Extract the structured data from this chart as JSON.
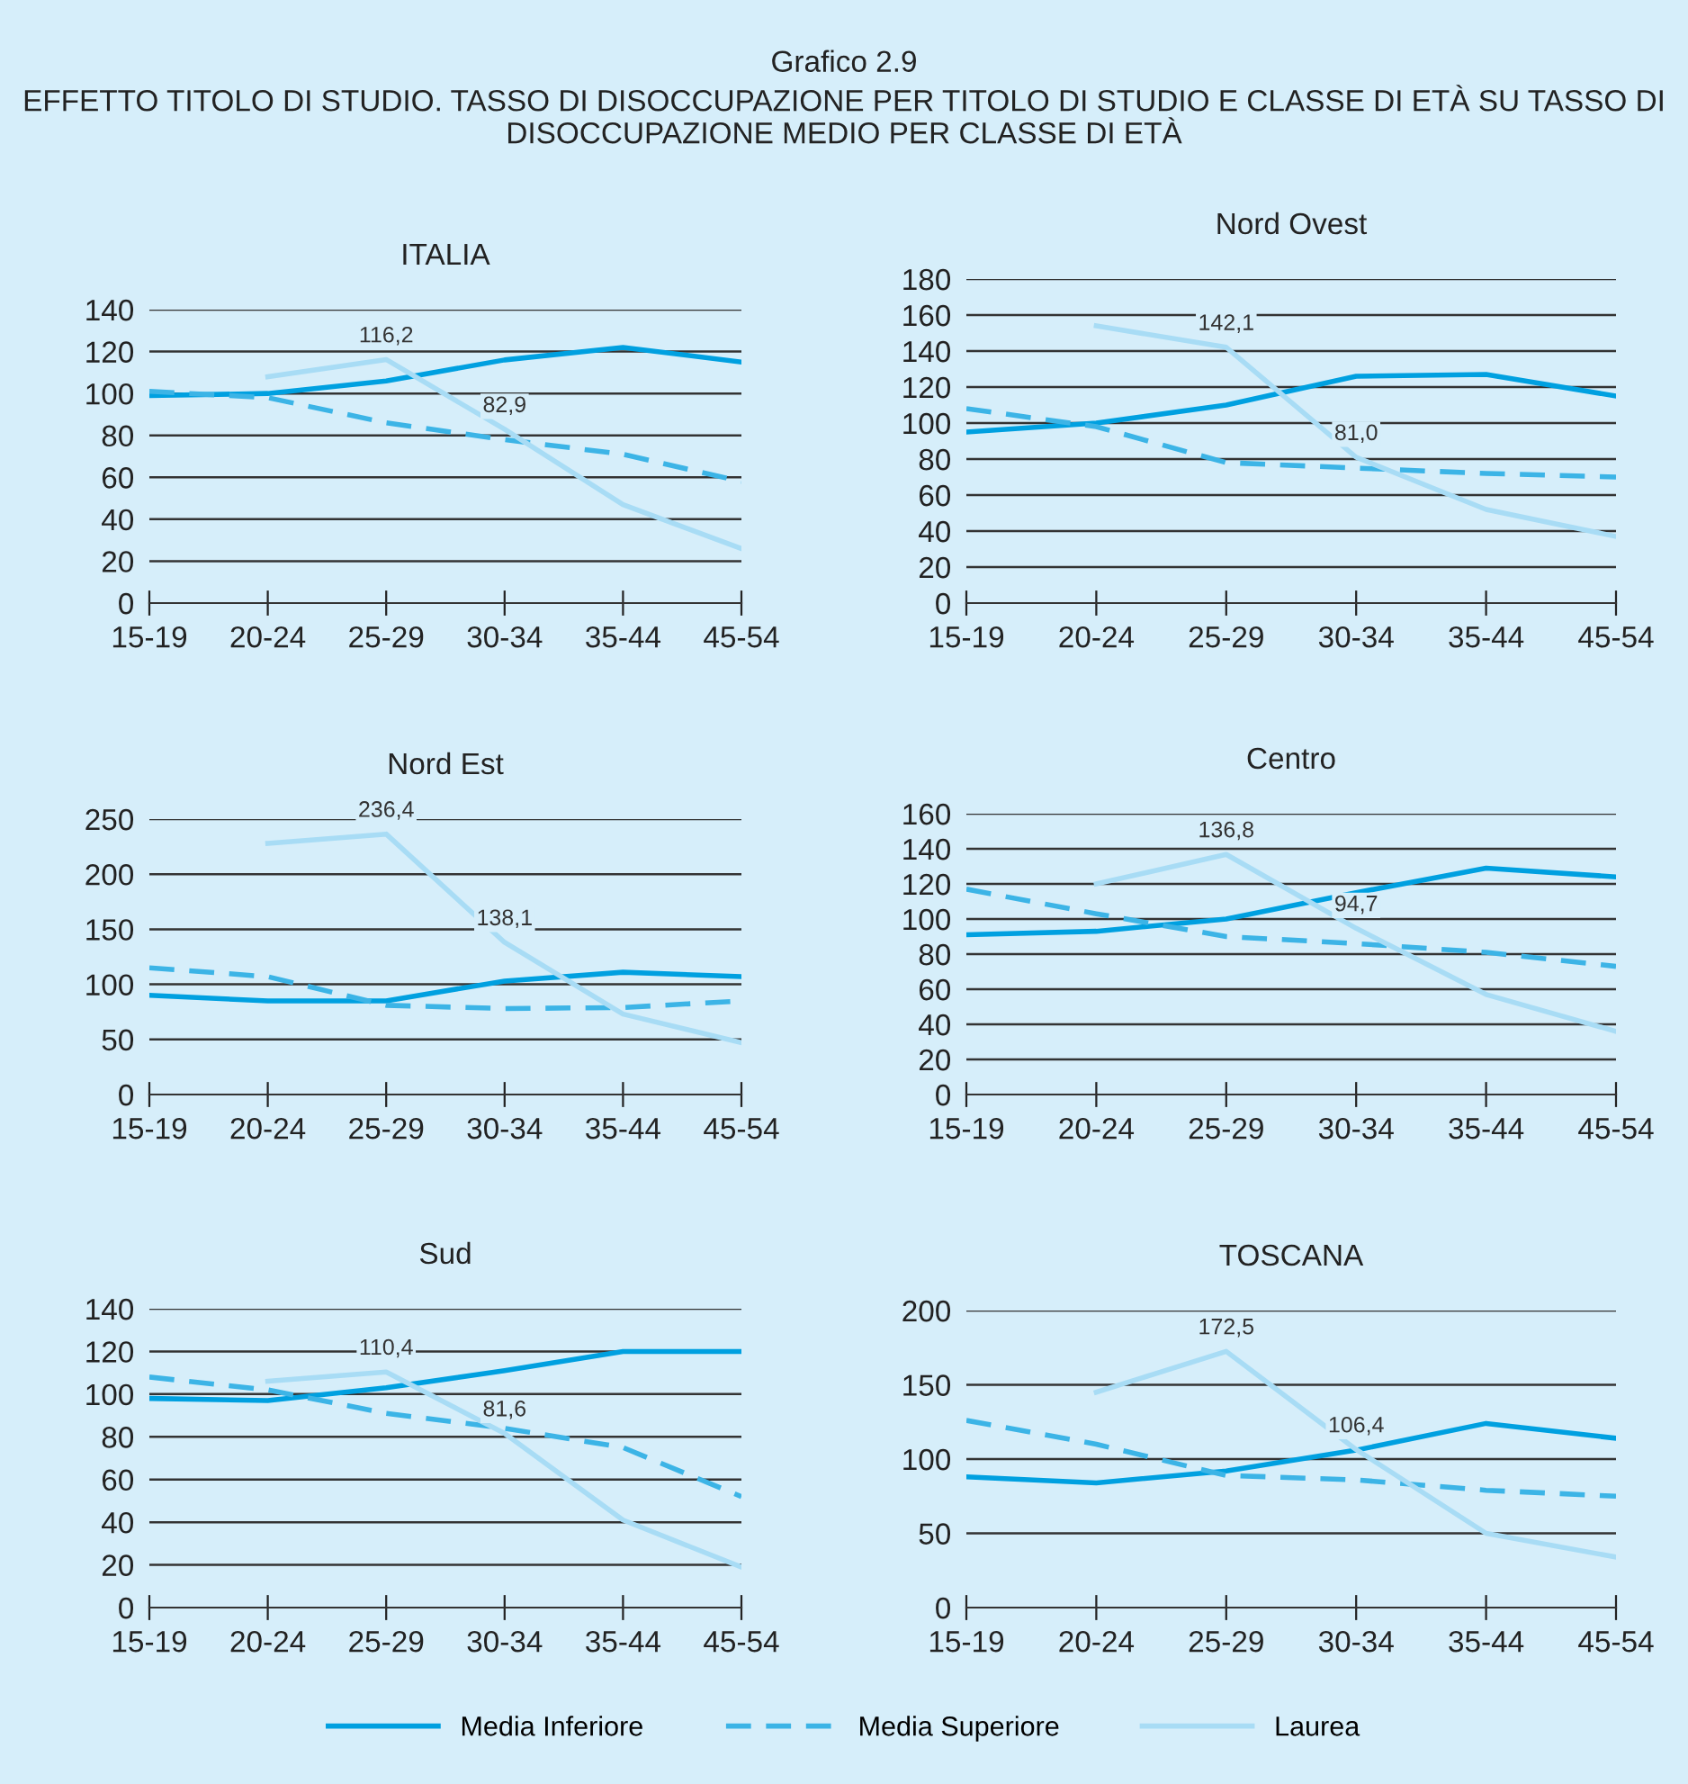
{
  "chart_data": [
    {
      "type": "line",
      "title": "ITALIA",
      "annotations": [
        "Grafico 2.9",
        "EFFETTO TITOLO DI STUDIO. TASSO DI DISOCCUPAZIONE PER TITOLO DI STUDIO E CLASSE DI ETÀ SU TASSO DI DISOCCUPAZIONE MEDIO PER CLASSE DI ETÀ"
      ],
      "categories": [
        "15-19",
        "20-24",
        "25-29",
        "30-34",
        "35-44",
        "45-54"
      ],
      "ylim": [
        0,
        140
      ],
      "yticks": [
        0,
        20,
        40,
        60,
        80,
        100,
        120,
        140
      ],
      "grid": "y",
      "legend": "bottom",
      "series": [
        {
          "name": "Media Inferiore",
          "color": "#00a0e0",
          "line_style": "solid",
          "values": [
            99,
            100,
            106,
            116,
            122,
            115
          ]
        },
        {
          "name": "Media Superiore",
          "color": "#3cb4e6",
          "line_style": "dashed",
          "values": [
            101,
            98,
            86,
            78,
            71,
            58
          ]
        },
        {
          "name": "Laurea",
          "color": "#a8dcf5",
          "line_style": "solid",
          "values": [
            null,
            108,
            116.2,
            82.9,
            47,
            26
          ],
          "value_labels": [
            null,
            null,
            "116,2",
            "82,9",
            null,
            null
          ]
        }
      ]
    },
    {
      "type": "line",
      "title": "Nord Ovest",
      "categories": [
        "15-19",
        "20-24",
        "25-29",
        "30-34",
        "35-44",
        "45-54"
      ],
      "ylim": [
        0,
        180
      ],
      "yticks": [
        0,
        20,
        40,
        60,
        80,
        100,
        120,
        140,
        160,
        180
      ],
      "grid": "y",
      "series": [
        {
          "color": "#00a0e0",
          "line_style": "solid",
          "values": [
            95,
            100,
            110,
            126,
            127,
            115
          ]
        },
        {
          "color": "#3cb4e6",
          "line_style": "dashed",
          "values": [
            108,
            98,
            78,
            75,
            72,
            70
          ]
        },
        {
          "color": "#a8dcf5",
          "line_style": "solid",
          "values": [
            null,
            154,
            142.1,
            81.0,
            52,
            37
          ],
          "value_labels": [
            null,
            null,
            "142,1",
            "81,0",
            null,
            null
          ]
        }
      ]
    },
    {
      "type": "line",
      "title": "Nord Est",
      "categories": [
        "15-19",
        "20-24",
        "25-29",
        "30-34",
        "35-44",
        "45-54"
      ],
      "ylim": [
        0,
        250
      ],
      "yticks": [
        0,
        50,
        100,
        150,
        200,
        250
      ],
      "grid": "y",
      "series": [
        {
          "color": "#00a0e0",
          "line_style": "solid",
          "values": [
            90,
            85,
            85,
            103,
            111,
            107
          ]
        },
        {
          "color": "#3cb4e6",
          "line_style": "dashed",
          "values": [
            115,
            107,
            81,
            78,
            79,
            85
          ]
        },
        {
          "color": "#a8dcf5",
          "line_style": "solid",
          "values": [
            null,
            228,
            236.4,
            138.1,
            73,
            47
          ],
          "value_labels": [
            null,
            null,
            "236,4",
            "138,1",
            null,
            null
          ]
        }
      ]
    },
    {
      "type": "line",
      "title": "Centro",
      "categories": [
        "15-19",
        "20-24",
        "25-29",
        "30-34",
        "35-44",
        "45-54"
      ],
      "ylim": [
        0,
        160
      ],
      "yticks": [
        0,
        20,
        40,
        60,
        80,
        100,
        120,
        140,
        160
      ],
      "grid": "y",
      "series": [
        {
          "color": "#00a0e0",
          "line_style": "solid",
          "values": [
            91,
            93,
            100,
            115,
            129,
            124
          ]
        },
        {
          "color": "#3cb4e6",
          "line_style": "dashed",
          "values": [
            117,
            103,
            90,
            86,
            81,
            73
          ]
        },
        {
          "color": "#a8dcf5",
          "line_style": "solid",
          "values": [
            null,
            120,
            136.8,
            94.7,
            57,
            36
          ],
          "value_labels": [
            null,
            null,
            "136,8",
            "94,7",
            null,
            null
          ]
        }
      ]
    },
    {
      "type": "line",
      "title": "Sud",
      "categories": [
        "15-19",
        "20-24",
        "25-29",
        "30-34",
        "35-44",
        "45-54"
      ],
      "ylim": [
        0,
        140
      ],
      "yticks": [
        0,
        20,
        40,
        60,
        80,
        100,
        120,
        140
      ],
      "grid": "y",
      "series": [
        {
          "color": "#00a0e0",
          "line_style": "solid",
          "values": [
            98,
            97,
            103,
            111,
            120,
            120
          ]
        },
        {
          "color": "#3cb4e6",
          "line_style": "dashed",
          "values": [
            108,
            102,
            91,
            84,
            75,
            52
          ]
        },
        {
          "color": "#a8dcf5",
          "line_style": "solid",
          "values": [
            null,
            106,
            110.4,
            81.6,
            41,
            19
          ],
          "value_labels": [
            null,
            null,
            "110,4",
            "81,6",
            null,
            null
          ]
        }
      ]
    },
    {
      "type": "line",
      "title": "TOSCANA",
      "categories": [
        "15-19",
        "20-24",
        "25-29",
        "30-34",
        "35-44",
        "45-54"
      ],
      "ylim": [
        0,
        200
      ],
      "yticks": [
        0,
        50,
        100,
        150,
        200
      ],
      "grid": "y",
      "series": [
        {
          "color": "#00a0e0",
          "line_style": "solid",
          "values": [
            88,
            84,
            92,
            106,
            124,
            114
          ]
        },
        {
          "color": "#3cb4e6",
          "line_style": "dashed",
          "values": [
            126,
            110,
            89,
            86,
            79,
            75
          ]
        },
        {
          "color": "#a8dcf5",
          "line_style": "solid",
          "values": [
            null,
            145,
            172.5,
            106.4,
            50,
            34
          ],
          "value_labels": [
            null,
            null,
            "172,5",
            "106,4",
            null,
            null
          ]
        }
      ]
    }
  ]
}
